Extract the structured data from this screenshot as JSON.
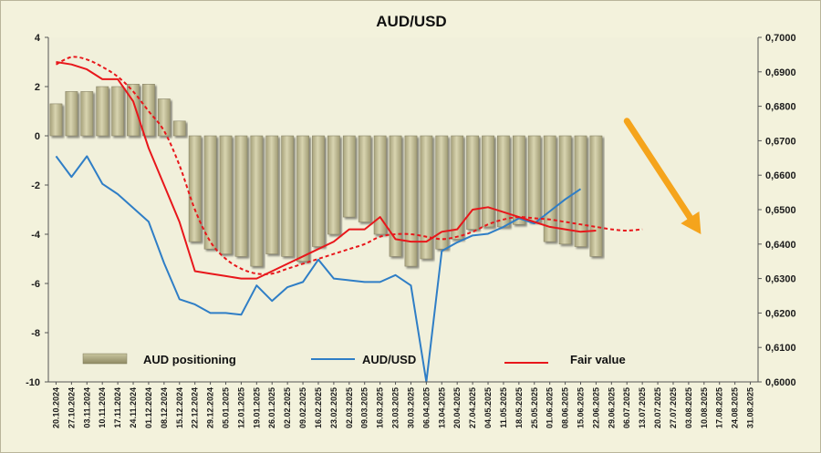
{
  "chart_data": {
    "type": "bar",
    "title": "AUD/USD",
    "categories": [
      "20.10.2024",
      "27.10.2024",
      "03.11.2024",
      "10.11.2024",
      "17.11.2024",
      "24.11.2024",
      "01.12.2024",
      "08.12.2024",
      "15.12.2024",
      "22.12.2024",
      "29.12.2024",
      "05.01.2025",
      "12.01.2025",
      "19.01.2025",
      "26.01.2025",
      "02.02.2025",
      "09.02.2025",
      "16.02.2025",
      "23.02.2025",
      "02.03.2025",
      "09.03.2025",
      "16.03.2025",
      "23.03.2025",
      "30.03.2025",
      "06.04.2025",
      "13.04.2025",
      "20.04.2025",
      "27.04.2025",
      "04.05.2025",
      "11.05.2025",
      "18.05.2025",
      "25.05.2025",
      "01.06.2025",
      "08.06.2025",
      "15.06.2025",
      "22.06.2025",
      "29.06.2025",
      "06.07.2025",
      "13.07.2025",
      "20.07.2025",
      "27.07.2025",
      "03.08.2025",
      "10.08.2025",
      "17.08.2025",
      "24.08.2025",
      "31.08.2025"
    ],
    "y_left": {
      "ylim": [
        -10,
        4
      ],
      "ticks": [
        "4",
        "2",
        "0",
        "-2",
        "-4",
        "-6",
        "-8",
        "-10"
      ]
    },
    "y_right": {
      "ylim": [
        0.6,
        0.7
      ],
      "ticks": [
        "0,7000",
        "0,6900",
        "0,6800",
        "0,6700",
        "0,6600",
        "0,6500",
        "0,6400",
        "0,6300",
        "0,6200",
        "0,6100",
        "0,6000"
      ]
    },
    "grid": false,
    "legend_position": "bottom",
    "series": [
      {
        "name": "AUD positioning",
        "kind": "bar",
        "axis": "left",
        "color": "#c7c39b",
        "values": [
          1.3,
          1.8,
          1.8,
          2.0,
          2.0,
          2.1,
          2.1,
          1.5,
          0.6,
          -4.3,
          -4.6,
          -4.8,
          -4.9,
          -5.3,
          -4.8,
          -4.9,
          -5.1,
          -4.5,
          -4.0,
          -3.3,
          -3.5,
          -4.0,
          -4.9,
          -5.3,
          -5.0,
          -4.6,
          -4.2,
          -3.8,
          -3.7,
          -3.7,
          -3.6,
          -3.5,
          -4.3,
          -4.4,
          -4.5,
          -4.9,
          null,
          null,
          null,
          null,
          null,
          null,
          null,
          null,
          null,
          null
        ]
      },
      {
        "name": "AUD/USD",
        "kind": "line",
        "axis": "right",
        "color": "#2f7ec6",
        "values": [
          0.6655,
          0.6595,
          0.6655,
          0.6575,
          0.6545,
          0.6505,
          0.6465,
          0.6345,
          0.624,
          0.6225,
          0.62,
          0.62,
          0.6195,
          0.628,
          0.6235,
          0.6275,
          0.629,
          0.6355,
          0.63,
          0.6295,
          0.629,
          0.629,
          0.631,
          0.628,
          0.6,
          0.638,
          0.6405,
          0.6425,
          0.643,
          0.645,
          0.6475,
          0.646,
          0.6495,
          0.653,
          0.656,
          null,
          null,
          null,
          null,
          null,
          null,
          null,
          null,
          null,
          null,
          null
        ]
      },
      {
        "name": "Fair value",
        "kind": "line",
        "axis": "left",
        "color": "#e8171b",
        "values": [
          3.0,
          2.9,
          2.7,
          2.3,
          2.3,
          1.4,
          -0.5,
          -2.0,
          -3.5,
          -5.5,
          -5.6,
          -5.7,
          -5.8,
          -5.8,
          -5.5,
          -5.2,
          -4.9,
          -4.6,
          -4.3,
          -3.8,
          -3.8,
          -3.3,
          -4.2,
          -4.3,
          -4.3,
          -3.9,
          -3.8,
          -3.0,
          -2.9,
          -3.1,
          -3.3,
          -3.5,
          -3.7,
          -3.8,
          -3.9,
          -3.85,
          null,
          null,
          null,
          null,
          null,
          null,
          null,
          null,
          null,
          null
        ]
      },
      {
        "name": "",
        "kind": "dashed-line",
        "axis": "left",
        "color": "#e8171b",
        "values": [
          2.9,
          3.2,
          3.1,
          2.8,
          2.4,
          1.8,
          1.0,
          0.2,
          -1.2,
          -3.0,
          -4.3,
          -5.0,
          -5.4,
          -5.6,
          -5.6,
          -5.4,
          -5.2,
          -5.0,
          -4.8,
          -4.6,
          -4.4,
          -4.1,
          -4.0,
          -4.0,
          -4.1,
          -4.2,
          -4.1,
          -3.9,
          -3.6,
          -3.4,
          -3.3,
          -3.35,
          -3.4,
          -3.5,
          -3.6,
          -3.7,
          -3.8,
          -3.85,
          -3.8,
          null,
          null,
          null,
          null,
          null,
          null,
          null
        ]
      }
    ],
    "legend": [
      {
        "label": "AUD positioning",
        "series": 0
      },
      {
        "label": "AUD/USD",
        "series": 1
      },
      {
        "label": "Fair value",
        "series": 2
      }
    ],
    "annotation": {
      "type": "arrow",
      "color": "#f5a41c",
      "direction": "down-right",
      "from": {
        "x": 37.5,
        "y": 0.6
      },
      "to": {
        "x": 42.3,
        "y": -4.0
      }
    }
  }
}
